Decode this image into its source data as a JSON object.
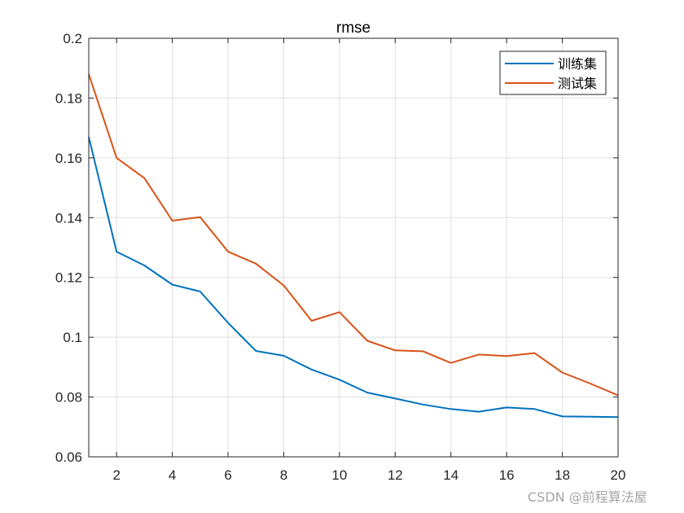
{
  "chart_data": {
    "type": "line",
    "title": "rmse",
    "xlabel": "",
    "ylabel": "",
    "xlim": [
      1,
      20
    ],
    "ylim": [
      0.06,
      0.2
    ],
    "grid": true,
    "legend_position": "northeast",
    "x": [
      1,
      2,
      3,
      4,
      5,
      6,
      7,
      8,
      9,
      10,
      11,
      12,
      13,
      14,
      15,
      16,
      17,
      18,
      19,
      20
    ],
    "x_ticks": [
      2,
      4,
      6,
      8,
      10,
      12,
      14,
      16,
      18,
      20
    ],
    "x_tick_labels": [
      "2",
      "4",
      "6",
      "8",
      "10",
      "12",
      "14",
      "16",
      "18",
      "20"
    ],
    "y_ticks": [
      0.06,
      0.08,
      0.1,
      0.12,
      0.14,
      0.16,
      0.18,
      0.2
    ],
    "y_tick_labels": [
      "0.06",
      "0.08",
      "0.1",
      "0.12",
      "0.14",
      "0.16",
      "0.18",
      "0.2"
    ],
    "series": [
      {
        "name": "训练集",
        "color": "#0072BD",
        "values": [
          0.167,
          0.1286,
          0.124,
          0.1176,
          0.1153,
          0.1048,
          0.0954,
          0.0938,
          0.0892,
          0.0858,
          0.0815,
          0.0795,
          0.0775,
          0.076,
          0.0751,
          0.0765,
          0.076,
          0.0735,
          0.0734,
          0.0733
        ]
      },
      {
        "name": "测试集",
        "color": "#D95319",
        "values": [
          0.188,
          0.16,
          0.1532,
          0.139,
          0.1402,
          0.1286,
          0.1246,
          0.1173,
          0.1055,
          0.1084,
          0.0988,
          0.0956,
          0.0953,
          0.0914,
          0.0942,
          0.0937,
          0.0947,
          0.0882,
          0.0845,
          0.0806
        ]
      }
    ]
  },
  "watermark": "CSDN @前程算法屋"
}
